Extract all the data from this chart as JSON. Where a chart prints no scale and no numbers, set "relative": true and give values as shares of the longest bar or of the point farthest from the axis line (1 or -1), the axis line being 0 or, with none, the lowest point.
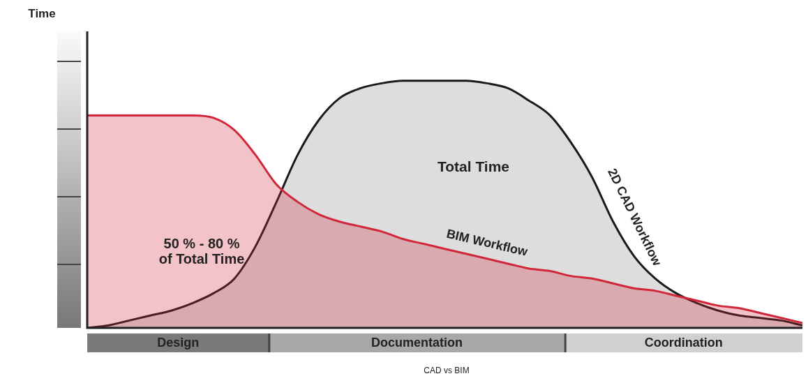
{
  "chart_data": {
    "type": "area",
    "relative": true,
    "legend": false,
    "tick_labels": false,
    "marker": "none",
    "categories": [
      null,
      null,
      null,
      null,
      null,
      null,
      null,
      null,
      null,
      null,
      null,
      null,
      null,
      null,
      null,
      null,
      null,
      null,
      null,
      null,
      null,
      null,
      null,
      null,
      null,
      null,
      null,
      null,
      null,
      null,
      null,
      null,
      null,
      null,
      null
    ],
    "series": [
      {
        "name": "2D CAD Workflow",
        "color": "#1a1a1a",
        "values": [
          0,
          0.01,
          0.03,
          0.05,
          0.07,
          0.1,
          0.14,
          0.2,
          0.33,
          0.51,
          0.7,
          0.84,
          0.93,
          0.97,
          0.99,
          1,
          1,
          1,
          1,
          0.99,
          0.97,
          0.92,
          0.86,
          0.75,
          0.61,
          0.43,
          0.29,
          0.2,
          0.14,
          0.1,
          0.07,
          0.05,
          0.04,
          0.03,
          0.01
        ]
      },
      {
        "name": "BIM Workflow",
        "color": "#d0283a",
        "values": [
          0.86,
          0.86,
          0.86,
          0.86,
          0.86,
          0.86,
          0.85,
          0.8,
          0.7,
          0.58,
          0.51,
          0.46,
          0.43,
          0.41,
          0.39,
          0.36,
          0.34,
          0.32,
          0.3,
          0.28,
          0.26,
          0.24,
          0.23,
          0.21,
          0.2,
          0.18,
          0.16,
          0.15,
          0.13,
          0.11,
          0.09,
          0.08,
          0.06,
          0.04,
          0.02
        ]
      }
    ],
    "annotations": [
      "Total Time",
      "50 % - 80 %",
      "of Total Time",
      "Design",
      "Documentation",
      "Coordination",
      "CAD vs BIM",
      "Time"
    ]
  }
}
